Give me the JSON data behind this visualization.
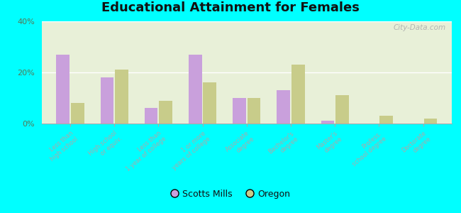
{
  "title": "Educational Attainment for Females",
  "categories": [
    "Less than\nhigh school",
    "High school\nor equiv.",
    "Less than\n1 year of college",
    "1 or more\nyears of college",
    "Associate\ndegree",
    "Bachelor's\ndegree",
    "Master's\ndegree",
    "Profess.\nschool degree",
    "Doctorate\ndegree"
  ],
  "scotts_mills": [
    27,
    18,
    6,
    27,
    10,
    13,
    1,
    0,
    0
  ],
  "oregon": [
    8,
    21,
    9,
    16,
    10,
    23,
    11,
    3,
    2
  ],
  "scotts_mills_color": "#c9a0dc",
  "oregon_color": "#c8cc8a",
  "background_color": "#e8f0d8",
  "outer_background": "#00ffff",
  "ylim": [
    0,
    40
  ],
  "yticks": [
    0,
    20,
    40
  ],
  "ytick_labels": [
    "0%",
    "20%",
    "40%"
  ],
  "watermark": "City-Data.com",
  "legend_scotts": "Scotts Mills",
  "legend_oregon": "Oregon",
  "title_fontsize": 13,
  "bar_width": 0.3
}
